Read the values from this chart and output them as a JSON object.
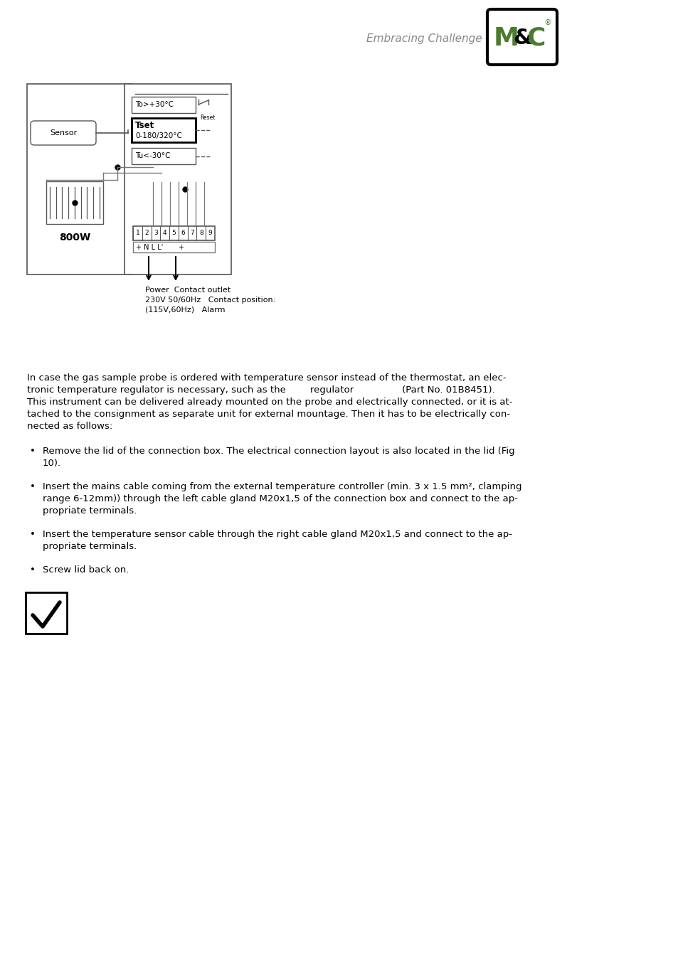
{
  "bg_color": "#ffffff",
  "header_text": "Embracing Challenge",
  "logo_color": "#4a7c2f",
  "para_lines": [
    "In case the gas sample probe is ordered with temperature sensor instead of the thermostat, an elec-",
    "tronic temperature regulator is necessary, such as the        regulator                (Part No. 01B8451).",
    "This instrument can be delivered already mounted on the probe and electrically connected, or it is at-",
    "tached to the consignment as separate unit for external mountage. Then it has to be electrically con-",
    "nected as follows:"
  ],
  "bullet1a": "Remove the lid of the connection box. The electrical connection layout is also located in the lid (Fig",
  "bullet1b": "10).",
  "bullet2a": "Insert the mains cable coming from the external temperature controller (min. 3 x 1.5 mm², clamping",
  "bullet2b": "range 6-12mm)) through the left cable gland M20x1,5 of the connection box and connect to the ap-",
  "bullet2c": "propriate terminals.",
  "bullet3a": "Insert the temperature sensor cable through the right cable gland M20x1,5 and connect to the ap-",
  "bullet3b": "propriate terminals.",
  "bullet4": "Screw lid back on.",
  "power_label": "Power  Contact outlet",
  "v230_label": "230V 50/60Hz   Contact position:",
  "v115_label": "(115V,60Hz)   Alarm",
  "terminal_labels": [
    "1",
    "2",
    "3",
    "4",
    "5",
    "6",
    "7",
    "8",
    "9"
  ]
}
